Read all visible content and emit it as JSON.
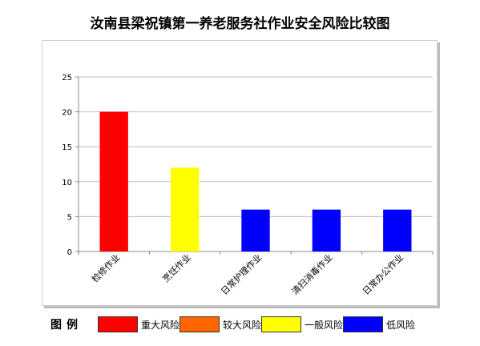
{
  "chart_data": {
    "type": "bar",
    "title": "汝南县梁祝镇第一养老服务社作业安全风险比较图",
    "categories": [
      "检修作业",
      "烹饪作业",
      "日常护理作业",
      "清扫消毒作业",
      "日常办公作业"
    ],
    "values": [
      20,
      12,
      6,
      6,
      6
    ],
    "bar_colors": [
      "#ff0000",
      "#ffff00",
      "#0000ff",
      "#0000ff",
      "#0000ff"
    ],
    "ylim": [
      0,
      25
    ],
    "yticks": [
      0,
      5,
      10,
      15,
      20,
      25
    ],
    "grid": true,
    "xlabel": "",
    "ylabel": "",
    "legend": {
      "title": "图例",
      "placement": "bottom",
      "items": [
        {
          "label": "重大风险",
          "color": "#ff0000"
        },
        {
          "label": "较大风险",
          "color": "#ff6600"
        },
        {
          "label": "一般风险",
          "color": "#ffff00"
        },
        {
          "label": "低风险",
          "color": "#0000ff"
        }
      ]
    }
  }
}
